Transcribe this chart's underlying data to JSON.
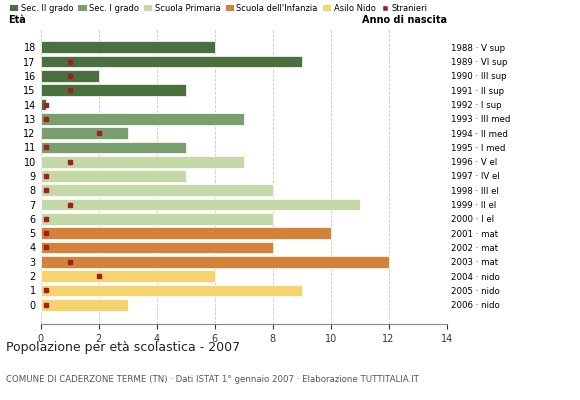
{
  "ages": [
    18,
    17,
    16,
    15,
    14,
    13,
    12,
    11,
    10,
    9,
    8,
    7,
    6,
    5,
    4,
    3,
    2,
    1,
    0
  ],
  "years": [
    "1988 · V sup",
    "1989 · VI sup",
    "1990 · III sup",
    "1991 · II sup",
    "1992 · I sup",
    "1993 · III med",
    "1994 · II med",
    "1995 · I med",
    "1996 · V el",
    "1997 · IV el",
    "1998 · III el",
    "1999 · II el",
    "2000 · I el",
    "2001 · mat",
    "2002 · mat",
    "2003 · mat",
    "2004 · nido",
    "2005 · nido",
    "2006 · nido"
  ],
  "bar_values": [
    6,
    9,
    2,
    5,
    0.2,
    7,
    3,
    5,
    7,
    5,
    8,
    11,
    8,
    10,
    8,
    12,
    6,
    9,
    3
  ],
  "bar_colors": [
    "#4a7040",
    "#4a7040",
    "#4a7040",
    "#4a7040",
    "#4a7040",
    "#7a9e6e",
    "#7a9e6e",
    "#7a9e6e",
    "#c5d9a8",
    "#c5d9a8",
    "#c5d9a8",
    "#c5d9a8",
    "#c5d9a8",
    "#d4823a",
    "#d4823a",
    "#d4823a",
    "#f5d470",
    "#f5d470",
    "#f5d470"
  ],
  "stranieri_x": [
    null,
    1,
    1,
    1,
    0.2,
    0.2,
    2,
    0.2,
    1,
    0.2,
    0.2,
    1,
    0.2,
    0.2,
    0.2,
    1,
    2,
    0.2,
    0.2
  ],
  "stranieri_show": [
    false,
    true,
    true,
    true,
    true,
    true,
    true,
    true,
    true,
    true,
    true,
    true,
    true,
    true,
    true,
    true,
    true,
    true,
    true
  ],
  "title": "Popolazione per età scolastica - 2007",
  "subtitle": "COMUNE DI CADERZONE TERME (TN) · Dati ISTAT 1° gennaio 2007 · Elaborazione TUTTITALIA.IT",
  "label_left": "Età",
  "label_right": "Anno di nascita",
  "legend_labels": [
    "Sec. II grado",
    "Sec. I grado",
    "Scuola Primaria",
    "Scuola dell'Infanzia",
    "Asilo Nido",
    "Stranieri"
  ],
  "legend_colors": [
    "#4a7040",
    "#7a9e6e",
    "#c5d9a8",
    "#d4823a",
    "#f5d470",
    "#a02020"
  ],
  "xlim": [
    0,
    14
  ],
  "xticks": [
    0,
    2,
    4,
    6,
    8,
    10,
    12,
    14
  ],
  "background_color": "#ffffff",
  "grid_color": "#c8c8c8",
  "bar_height": 0.82
}
